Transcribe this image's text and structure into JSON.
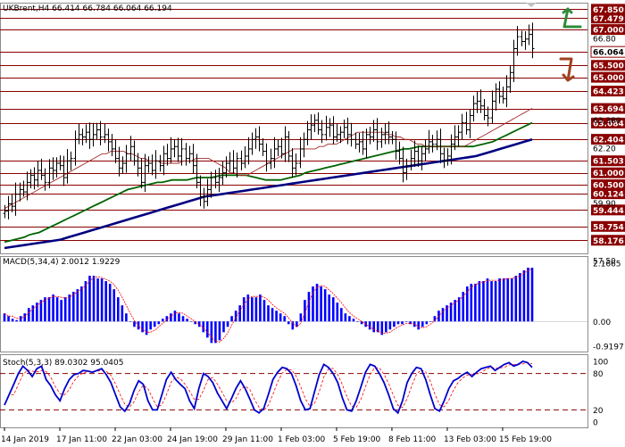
{
  "chart_data": [
    {
      "type": "candlestick",
      "title": "UKBrent,H4  66.414 66.784 66.064 66.194",
      "x_tick_labels": [
        "14 Jan 2019",
        "17 Jan 11:00",
        "22 Jan 03:00",
        "24 Jan 19:00",
        "29 Jan 11:00",
        "1 Feb 03:00",
        "5 Feb 19:00",
        "8 Feb 11:00",
        "13 Feb 03:00",
        "15 Feb 19:00"
      ],
      "x_tick_index": [
        0,
        15,
        30,
        45,
        60,
        75,
        90,
        105,
        120,
        135
      ],
      "ylim": [
        57.7,
        68.05
      ],
      "y_tick_labels": [
        "67.850",
        "67.479",
        "67.000",
        "66.80",
        "65.500",
        "65.000",
        "64.423",
        "63.380",
        "62.20",
        "61.000",
        "60.500",
        "59.90",
        "58.754",
        "57.50"
      ],
      "levels": [
        {
          "value": 67.85,
          "label": "67.850"
        },
        {
          "value": 67.479,
          "label": "67.479"
        },
        {
          "value": 67.0,
          "label": "67.000"
        },
        {
          "value": 66.064,
          "label": "66.064",
          "highlight": true
        },
        {
          "value": 65.5,
          "label": "65.500"
        },
        {
          "value": 65.0,
          "label": "65.000"
        },
        {
          "value": 64.423,
          "label": "64.423"
        },
        {
          "value": 63.694,
          "label": "63.694"
        },
        {
          "value": 63.084,
          "label": "63.084"
        },
        {
          "value": 62.404,
          "label": "62.404"
        },
        {
          "value": 61.503,
          "label": "61.503"
        },
        {
          "value": 61.0,
          "label": "61.000"
        },
        {
          "value": 60.5,
          "label": "60.500"
        },
        {
          "value": 60.124,
          "label": "60.124"
        },
        {
          "value": 59.444,
          "label": "59.444"
        },
        {
          "value": 58.754,
          "label": "58.754"
        },
        {
          "value": 58.176,
          "label": "58.176"
        }
      ],
      "close": [
        59.4,
        59.7,
        59.6,
        60.1,
        60.3,
        60.2,
        60.6,
        60.9,
        60.7,
        61.1,
        60.9,
        60.6,
        61.2,
        61.1,
        61.4,
        61.3,
        60.8,
        61.5,
        61.6,
        62.4,
        62.6,
        62.5,
        62.7,
        62.4,
        62.6,
        62.8,
        62.5,
        62.6,
        62.3,
        62.0,
        61.6,
        61.2,
        61.4,
        61.8,
        62.1,
        61.5,
        61.2,
        60.6,
        61.3,
        61.4,
        61.1,
        61.5,
        61.3,
        61.8,
        61.6,
        62.0,
        62.1,
        61.7,
        62.0,
        61.6,
        61.8,
        61.3,
        60.6,
        60.0,
        59.8,
        60.3,
        60.8,
        60.6,
        60.8,
        61.0,
        61.4,
        61.5,
        61.2,
        61.6,
        61.4,
        61.7,
        62.0,
        62.4,
        62.5,
        62.2,
        61.9,
        61.4,
        61.6,
        62.0,
        62.1,
        61.8,
        62.5,
        61.7,
        61.2,
        61.4,
        62.0,
        62.4,
        62.8,
        63.0,
        63.2,
        62.8,
        62.6,
        62.9,
        63.0,
        62.5,
        62.6,
        62.7,
        62.9,
        62.6,
        62.4,
        62.2,
        62.3,
        62.0,
        62.6,
        62.5,
        62.8,
        62.3,
        62.6,
        62.7,
        62.5,
        62.4,
        61.9,
        61.6,
        61.0,
        61.3,
        61.6,
        61.9,
        61.5,
        61.8,
        62.0,
        62.3,
        62.2,
        62.4,
        61.8,
        61.5,
        61.7,
        62.2,
        62.5,
        62.7,
        63.1,
        62.8,
        63.4,
        63.9,
        64.0,
        63.8,
        63.4,
        63.3,
        64.0,
        64.5,
        64.2,
        64.1,
        64.6,
        65.2,
        66.2,
        66.7,
        66.5,
        66.6,
        66.8,
        66.2
      ],
      "ma_fast_red": [
        59.5,
        59.6,
        59.7,
        59.8,
        59.9,
        60.0,
        60.1,
        60.2,
        60.3,
        60.4,
        60.5,
        60.6,
        60.7,
        60.8,
        60.9,
        61.0,
        61.1,
        61.2,
        61.3,
        61.4,
        61.5,
        61.6,
        61.7,
        61.8,
        61.8,
        61.9,
        61.9,
        61.9,
        61.9,
        61.8,
        61.8,
        61.7,
        61.6,
        61.6,
        61.5,
        61.5,
        61.5,
        61.4,
        61.4,
        61.4,
        61.4,
        61.4,
        61.5,
        61.5,
        61.5,
        61.6,
        61.6,
        61.6,
        61.6,
        61.5,
        61.4,
        61.3,
        61.2,
        61.0,
        61.0,
        60.9,
        60.9,
        60.9,
        61.0,
        61.1,
        61.2,
        61.3,
        61.4,
        61.5,
        61.6,
        61.7,
        61.8,
        61.9,
        62.0,
        62.0,
        62.0,
        62.0,
        62.0,
        62.0,
        62.1,
        62.1,
        62.2,
        62.2,
        62.2,
        62.3,
        62.4,
        62.5,
        62.6,
        62.7,
        62.7,
        62.7,
        62.7,
        62.7,
        62.7,
        62.7,
        62.6,
        62.6,
        62.5,
        62.5,
        62.4,
        62.4,
        62.3,
        62.2,
        62.2,
        62.1,
        62.1,
        62.1,
        62.1,
        62.1,
        62.1,
        62.1,
        62.1,
        62.1,
        62.1,
        62.2,
        62.3,
        62.4,
        62.5,
        62.6,
        62.7,
        62.8,
        62.9,
        63.0,
        63.1,
        63.2,
        63.3,
        63.4,
        63.5,
        63.6,
        63.7
      ],
      "ma_mid_green": [
        58.1,
        58.15,
        58.2,
        58.25,
        58.3,
        58.4,
        58.45,
        58.5,
        58.6,
        58.7,
        58.8,
        58.9,
        59.0,
        59.1,
        59.2,
        59.3,
        59.4,
        59.5,
        59.6,
        59.7,
        59.8,
        59.9,
        60.0,
        60.1,
        60.2,
        60.3,
        60.35,
        60.4,
        60.45,
        60.5,
        60.55,
        60.6,
        60.6,
        60.65,
        60.7,
        60.7,
        60.7,
        60.7,
        60.75,
        60.8,
        60.8,
        60.8,
        60.8,
        60.85,
        60.9,
        60.9,
        60.9,
        60.9,
        60.9,
        60.9,
        60.85,
        60.8,
        60.75,
        60.7,
        60.7,
        60.7,
        60.7,
        60.75,
        60.8,
        60.85,
        60.9,
        61.0,
        61.05,
        61.1,
        61.15,
        61.2,
        61.25,
        61.3,
        61.35,
        61.4,
        61.45,
        61.5,
        61.55,
        61.6,
        61.65,
        61.7,
        61.75,
        61.8,
        61.85,
        61.9,
        61.95,
        62.0,
        62.0,
        62.05,
        62.1,
        62.1,
        62.1,
        62.1,
        62.1,
        62.1,
        62.1,
        62.1,
        62.1,
        62.1,
        62.1,
        62.1,
        62.15,
        62.2,
        62.25,
        62.3,
        62.4,
        62.5,
        62.6,
        62.7,
        62.8,
        62.9,
        63.0,
        63.1
      ],
      "ma_slow_navy": [
        57.85,
        57.9,
        57.95,
        58.0,
        58.05,
        58.1,
        58.15,
        58.2,
        58.3,
        58.4,
        58.5,
        58.6,
        58.7,
        58.8,
        58.9,
        59.0,
        59.1,
        59.2,
        59.3,
        59.4,
        59.5,
        59.6,
        59.7,
        59.8,
        59.9,
        60.0,
        60.05,
        60.1,
        60.15,
        60.2,
        60.25,
        60.3,
        60.35,
        60.4,
        60.45,
        60.5,
        60.55,
        60.6,
        60.65,
        60.7,
        60.75,
        60.8,
        60.85,
        60.9,
        60.95,
        61.0,
        61.05,
        61.1,
        61.15,
        61.2,
        61.25,
        61.3,
        61.35,
        61.4,
        61.45,
        61.5,
        61.55,
        61.6,
        61.65,
        61.7,
        61.8,
        61.9,
        62.0,
        62.1,
        62.2,
        62.3,
        62.4
      ],
      "ma_fast_x_start": 0,
      "ma_mid_x_start": 0,
      "ma_slow_x_start": 0
    },
    {
      "type": "bar",
      "title": "MACD(5,34,4) 2.0012 1.9229",
      "y_tick_labels": [
        "2.1665",
        "0.00",
        "-0.9197"
      ],
      "ylim": [
        -0.9197,
        2.1665
      ],
      "histogram": [
        0.3,
        0.2,
        0.1,
        0.05,
        0.2,
        0.3,
        0.5,
        0.6,
        0.7,
        0.8,
        0.9,
        0.9,
        1.0,
        0.9,
        0.8,
        0.9,
        1.0,
        1.1,
        1.2,
        1.3,
        1.5,
        1.7,
        1.7,
        1.6,
        1.6,
        1.5,
        1.4,
        1.2,
        0.9,
        0.6,
        0.3,
        0.0,
        -0.2,
        -0.3,
        -0.4,
        -0.5,
        -0.3,
        -0.2,
        -0.1,
        0.1,
        0.2,
        0.3,
        0.4,
        0.3,
        0.2,
        0.1,
        0.0,
        -0.1,
        -0.2,
        -0.4,
        -0.6,
        -0.8,
        -0.8,
        -0.7,
        -0.4,
        -0.2,
        0.2,
        0.4,
        0.6,
        0.9,
        1.0,
        0.9,
        0.9,
        1.0,
        0.8,
        0.6,
        0.5,
        0.4,
        0.3,
        0.2,
        -0.1,
        -0.3,
        -0.2,
        0.3,
        0.8,
        1.1,
        1.3,
        1.4,
        1.3,
        1.2,
        1.0,
        0.9,
        0.7,
        0.5,
        0.3,
        0.2,
        0.1,
        0.0,
        -0.1,
        -0.2,
        -0.3,
        -0.4,
        -0.4,
        -0.5,
        -0.4,
        -0.3,
        -0.2,
        -0.1,
        -0.1,
        0.0,
        -0.1,
        -0.2,
        -0.3,
        -0.2,
        -0.1,
        0.0,
        0.2,
        0.4,
        0.5,
        0.6,
        0.7,
        0.8,
        0.9,
        1.1,
        1.3,
        1.4,
        1.4,
        1.5,
        1.5,
        1.6,
        1.5,
        1.5,
        1.6,
        1.6,
        1.6,
        1.6,
        1.7,
        1.8,
        1.9,
        2.0,
        2.0
      ]
    },
    {
      "type": "line",
      "title": "Stoch(5,3,3) 89.0302 95.0405",
      "y_tick_labels": [
        "100",
        "80",
        "20",
        "0"
      ],
      "ylim": [
        0,
        100
      ],
      "levels": [
        80,
        20
      ],
      "series": [
        {
          "name": "Stoch(5,3,3)",
          "values": [
            28,
            45,
            62,
            80,
            92,
            85,
            75,
            88,
            92,
            70,
            60,
            45,
            35,
            55,
            70,
            78,
            80,
            85,
            84,
            82,
            85,
            88,
            78,
            65,
            45,
            25,
            18,
            30,
            52,
            68,
            62,
            35,
            20,
            20,
            45,
            70,
            82,
            70,
            62,
            55,
            35,
            22,
            55,
            80,
            75,
            65,
            48,
            35,
            22,
            38,
            55,
            68,
            55,
            38,
            20,
            15,
            22,
            45,
            70,
            82,
            90,
            88,
            80,
            60,
            35,
            20,
            22,
            50,
            78,
            95,
            90,
            80,
            65,
            40,
            20,
            18,
            35,
            58,
            82,
            95,
            92,
            80,
            65,
            45,
            22,
            15,
            35,
            65,
            80,
            90,
            88,
            70,
            45,
            22,
            18,
            35,
            55,
            68,
            72,
            78,
            82,
            75,
            82,
            88,
            90,
            92,
            85,
            90,
            95,
            98,
            92,
            95,
            100,
            98,
            90
          ]
        }
      ]
    }
  ]
}
